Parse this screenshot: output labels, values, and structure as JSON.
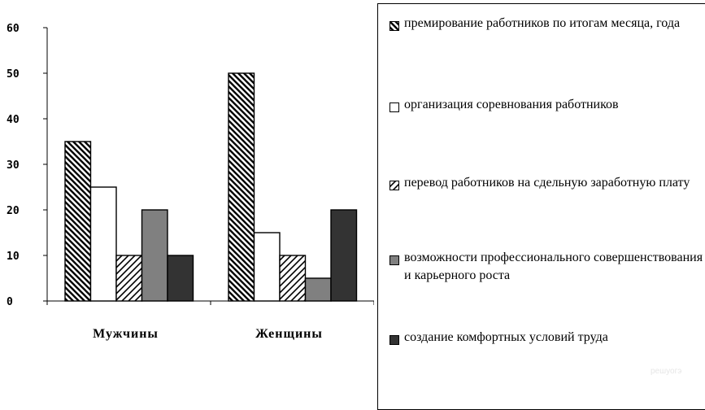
{
  "chart_data": {
    "type": "bar",
    "categories": [
      "Мужчины",
      "Женщины"
    ],
    "series": [
      {
        "name": "премирование работников по итогам месяца, года",
        "values": [
          35,
          50
        ],
        "pattern": "hatch-back",
        "color": "#000000"
      },
      {
        "name": "организация соревнования работников",
        "values": [
          25,
          15
        ],
        "pattern": "solid",
        "color": "#ffffff"
      },
      {
        "name": "перевод работников на сдельную заработную плату",
        "values": [
          10,
          10
        ],
        "pattern": "hatch-fwd",
        "color": "#000000"
      },
      {
        "name": "возможности профессионального совершенствования и карьерного роста",
        "values": [
          20,
          5
        ],
        "pattern": "solid",
        "color": "#808080"
      },
      {
        "name": "создание комфортных условий труда",
        "values": [
          10,
          20
        ],
        "pattern": "solid",
        "color": "#333333"
      }
    ],
    "ylim": [
      0,
      60
    ],
    "yticks": [
      "0",
      "10",
      "20",
      "30",
      "40",
      "50",
      "60"
    ],
    "legend_position": "right"
  },
  "legend": {
    "items": [
      {
        "label": "премирование работников по итогам месяца, года"
      },
      {
        "label": "организация соревнования работников"
      },
      {
        "label": "перевод работников на сдельную заработную плату"
      },
      {
        "label": "возможности профессионального совершенствования и карьерного роста"
      },
      {
        "label": "создание комфортных условий труда"
      }
    ]
  },
  "watermark": "решуогэ"
}
